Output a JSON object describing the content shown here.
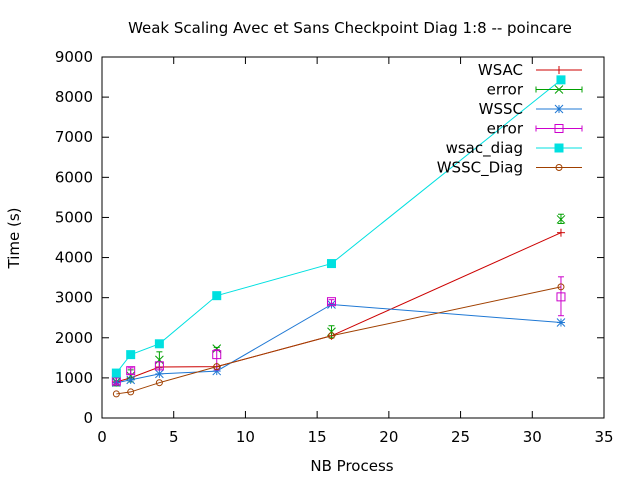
{
  "chart_data": {
    "type": "line",
    "title": "Weak Scaling Avec et Sans Checkpoint Diag 1:8 -- poincare",
    "xlabel": "NB Process",
    "ylabel": "Time (s)",
    "xlim": [
      0,
      35
    ],
    "ylim": [
      0,
      9000
    ],
    "xticks": [
      0,
      5,
      10,
      15,
      20,
      25,
      30,
      35
    ],
    "yticks": [
      0,
      1000,
      2000,
      3000,
      4000,
      5000,
      6000,
      7000,
      8000,
      9000
    ],
    "grid": false,
    "legend_position": "top-right",
    "series": [
      {
        "name": "WSAC",
        "color": "#cc0000",
        "marker": "plus",
        "x": [
          1,
          2,
          4,
          8,
          16,
          32
        ],
        "y": [
          900,
          1000,
          1270,
          1280,
          2050,
          4620
        ]
      },
      {
        "name": "error",
        "color": "#00a000",
        "marker": "x",
        "kind": "errorbar",
        "x": [
          1,
          2,
          4,
          8,
          16,
          32
        ],
        "y": [
          900,
          1050,
          1450,
          1730,
          2150,
          4950
        ],
        "yerr_low": [
          800,
          900,
          1250,
          1700,
          2000,
          4850
        ],
        "yerr_high": [
          1000,
          1200,
          1650,
          1760,
          2300,
          5080
        ]
      },
      {
        "name": "WSSC",
        "color": "#1f78d4",
        "marker": "star",
        "x": [
          1,
          2,
          4,
          8,
          16,
          32
        ],
        "y": [
          880,
          950,
          1100,
          1170,
          2830,
          2380
        ]
      },
      {
        "name": "error",
        "color": "#cc00cc",
        "marker": "square-open",
        "kind": "errorbar",
        "x": [
          1,
          2,
          4,
          8,
          16,
          32
        ],
        "y": [
          920,
          1180,
          1300,
          1580,
          2900,
          3020
        ],
        "yerr_low": [
          850,
          1100,
          1250,
          1200,
          2850,
          2550
        ],
        "yerr_high": [
          1000,
          1250,
          1400,
          1700,
          2950,
          3520
        ]
      },
      {
        "name": "wsac_diag",
        "color": "#00e0e0",
        "marker": "square-filled",
        "x": [
          1,
          2,
          4,
          8,
          16,
          32
        ],
        "y": [
          1120,
          1580,
          1850,
          3050,
          3850,
          8430
        ]
      },
      {
        "name": "WSSC_Diag",
        "color": "#a04000",
        "marker": "circle-open",
        "x": [
          1,
          2,
          4,
          8,
          16,
          32
        ],
        "y": [
          600,
          650,
          880,
          1280,
          2050,
          3270
        ]
      }
    ]
  }
}
